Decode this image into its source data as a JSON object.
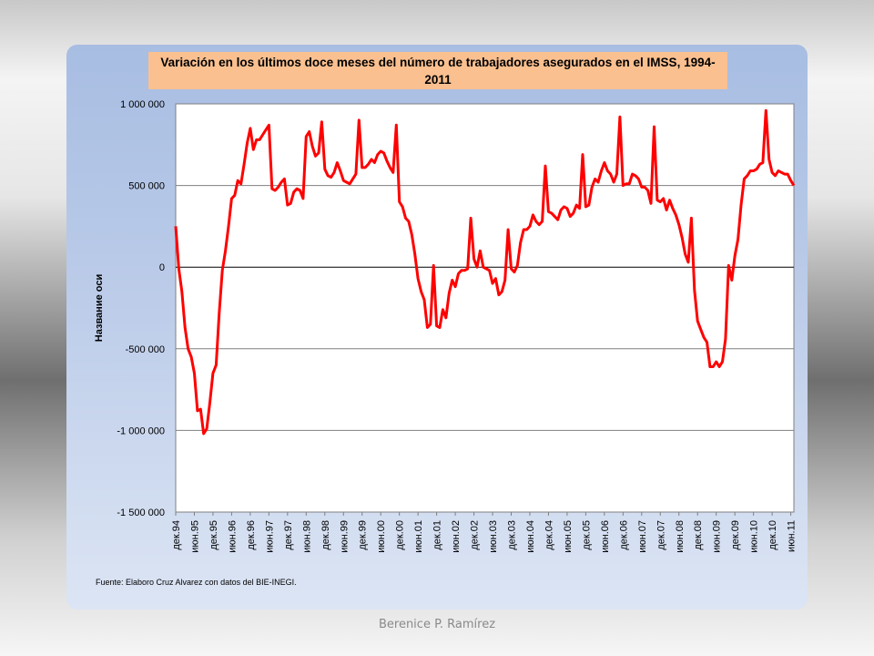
{
  "chart_data": {
    "type": "line",
    "title": "Variación en los últimos doce meses del número de trabajadores asegurados en el IMSS, 1994-2011",
    "ylabel": "Название оси",
    "xlabel": "",
    "ylim": [
      -1500000,
      1000000
    ],
    "yticks": [
      1000000,
      500000,
      0,
      -500000,
      -1000000,
      -1500000
    ],
    "ytick_labels": [
      "1 000 000",
      "500 000",
      "0",
      "-500 000",
      "-1 000 000",
      "-1 500 000"
    ],
    "x_tick_labels": [
      "дек.94",
      "июн.95",
      "дек.95",
      "июн.96",
      "дек.96",
      "июн.97",
      "дек.97",
      "июн.98",
      "дек.98",
      "июн.99",
      "дек.99",
      "июн.00",
      "дек.00",
      "июн.01",
      "дек.01",
      "июн.02",
      "дек.02",
      "июн.03",
      "дек.03",
      "июн.04",
      "дек.04",
      "июн.05",
      "дек.05",
      "июн.06",
      "дек.06",
      "июн.07",
      "дек.07",
      "июн.08",
      "дек.08",
      "июн.09",
      "дек.09",
      "июн.10",
      "дек.10",
      "июн.11"
    ],
    "legend": "none",
    "grid": "horizontal",
    "series": [
      {
        "color": "#ff0000",
        "x": [
          "дек.94",
          "янв.95",
          "фев.95",
          "мар.95",
          "апр.95",
          "май.95",
          "июн.95",
          "июл.95",
          "авг.95",
          "сен.95",
          "окт.95",
          "ноя.95",
          "дек.95",
          "янв.96",
          "фев.96",
          "мар.96",
          "апр.96",
          "май.96",
          "июн.96",
          "июл.96",
          "авг.96",
          "сен.96",
          "окт.96",
          "ноя.96",
          "дек.96",
          "янв.97",
          "фев.97",
          "мар.97",
          "апр.97",
          "май.97",
          "июн.97",
          "июл.97",
          "авг.97",
          "сен.97",
          "окт.97",
          "ноя.97",
          "дек.97",
          "янв.98",
          "фев.98",
          "мар.98",
          "апр.98",
          "май.98",
          "июн.98",
          "июл.98",
          "авг.98",
          "сен.98",
          "окт.98",
          "ноя.98",
          "дек.98",
          "янв.99",
          "фев.99",
          "мар.99",
          "апр.99",
          "май.99",
          "июн.99",
          "июл.99",
          "авг.99",
          "сен.99",
          "окт.99",
          "ноя.99",
          "дек.99",
          "янв.00",
          "фев.00",
          "мар.00",
          "апр.00",
          "май.00",
          "июн.00",
          "июл.00",
          "авг.00",
          "сен.00",
          "окт.00",
          "ноя.00",
          "дек.00",
          "янв.01",
          "фев.01",
          "мар.01",
          "апр.01",
          "май.01",
          "июн.01",
          "июл.01",
          "авг.01",
          "сен.01",
          "окт.01",
          "ноя.01",
          "дек.01",
          "янв.02",
          "фев.02",
          "мар.02",
          "апр.02",
          "май.02",
          "июн.02",
          "июл.02",
          "авг.02",
          "сен.02",
          "окт.02",
          "ноя.02",
          "дек.02",
          "янв.03",
          "фев.03",
          "мар.03",
          "апр.03",
          "май.03",
          "июн.03",
          "июл.03",
          "авг.03",
          "сен.03",
          "окт.03",
          "ноя.03",
          "дек.03",
          "янв.04",
          "фев.04",
          "мар.04",
          "апр.04",
          "май.04",
          "июн.04",
          "июл.04",
          "авг.04",
          "сен.04",
          "окт.04",
          "ноя.04",
          "дек.04",
          "янв.05",
          "фев.05",
          "мар.05",
          "апр.05",
          "май.05",
          "июн.05",
          "июл.05",
          "авг.05",
          "сен.05",
          "окт.05",
          "ноя.05",
          "дек.05",
          "янв.06",
          "фев.06",
          "мар.06",
          "апр.06",
          "май.06",
          "июн.06",
          "июл.06",
          "авг.06",
          "сен.06",
          "окт.06",
          "ноя.06",
          "дек.06",
          "янв.07",
          "фев.07",
          "мар.07",
          "апр.07",
          "май.07",
          "июн.07",
          "июл.07",
          "авг.07",
          "сен.07",
          "окт.07",
          "ноя.07",
          "дек.07",
          "янв.08",
          "фев.08",
          "мар.08",
          "апр.08",
          "май.08",
          "июн.08",
          "июл.08",
          "авг.08",
          "сен.08",
          "окт.08",
          "ноя.08",
          "дек.08",
          "янв.09",
          "фев.09",
          "мар.09",
          "апр.09",
          "май.09",
          "июн.09",
          "июл.09",
          "авг.09",
          "сен.09",
          "окт.09",
          "ноя.09",
          "дек.09",
          "янв.10",
          "фев.10",
          "мар.10",
          "апр.10",
          "май.10",
          "июн.10",
          "июл.10",
          "авг.10",
          "сен.10",
          "окт.10",
          "ноя.10",
          "дек.10",
          "янв.11",
          "фев.11",
          "мар.11",
          "апр.11",
          "май.11",
          "июн.11",
          "июл.11"
        ],
        "values": [
          250000,
          -10000,
          -150000,
          -370000,
          -500000,
          -550000,
          -650000,
          -880000,
          -870000,
          -1020000,
          -990000,
          -830000,
          -650000,
          -600000,
          -280000,
          -20000,
          100000,
          250000,
          420000,
          440000,
          530000,
          510000,
          630000,
          760000,
          850000,
          720000,
          780000,
          780000,
          810000,
          840000,
          870000,
          480000,
          470000,
          490000,
          520000,
          540000,
          380000,
          390000,
          460000,
          480000,
          470000,
          420000,
          800000,
          830000,
          740000,
          680000,
          700000,
          890000,
          600000,
          560000,
          550000,
          580000,
          640000,
          590000,
          530000,
          520000,
          510000,
          540000,
          570000,
          900000,
          610000,
          610000,
          630000,
          660000,
          640000,
          690000,
          710000,
          700000,
          650000,
          610000,
          580000,
          870000,
          400000,
          370000,
          300000,
          280000,
          200000,
          80000,
          -70000,
          -150000,
          -200000,
          -370000,
          -350000,
          10000,
          -360000,
          -370000,
          -260000,
          -310000,
          -160000,
          -80000,
          -120000,
          -40000,
          -20000,
          -20000,
          -10000,
          300000,
          50000,
          0,
          100000,
          0,
          -10000,
          -20000,
          -100000,
          -70000,
          -170000,
          -150000,
          -80000,
          230000,
          -10000,
          -30000,
          10000,
          150000,
          230000,
          230000,
          250000,
          320000,
          280000,
          260000,
          280000,
          620000,
          340000,
          330000,
          310000,
          290000,
          350000,
          370000,
          360000,
          310000,
          330000,
          380000,
          360000,
          690000,
          370000,
          380000,
          490000,
          540000,
          520000,
          590000,
          640000,
          590000,
          570000,
          520000,
          570000,
          920000,
          500000,
          510000,
          510000,
          570000,
          560000,
          540000,
          490000,
          490000,
          470000,
          390000,
          860000,
          410000,
          400000,
          420000,
          350000,
          410000,
          360000,
          320000,
          260000,
          180000,
          80000,
          30000,
          300000,
          -140000,
          -330000,
          -380000,
          -430000,
          -460000,
          -610000,
          -610000,
          -580000,
          -610000,
          -580000,
          -440000,
          10000,
          -80000,
          70000,
          170000,
          380000,
          540000,
          560000,
          590000,
          590000,
          600000,
          630000,
          640000,
          960000,
          660000,
          580000,
          560000,
          590000,
          580000,
          570000,
          570000,
          530000,
          500000
        ]
      }
    ]
  },
  "source_note": "Fuente: Elaboro Cruz Alvarez con datos del BIE-INEGI.",
  "footer_author": "Berenice P. Ramírez"
}
